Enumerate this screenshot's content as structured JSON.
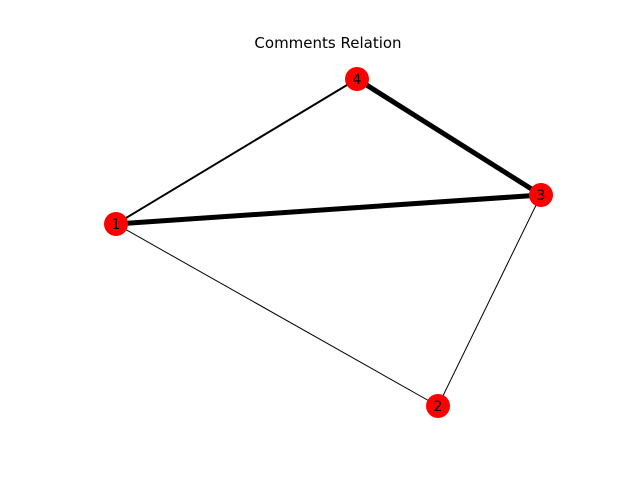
{
  "figure": {
    "title": "Comments Relation"
  },
  "graph": {
    "node_color": "#ff0000",
    "edge_color": "#000000",
    "nodes": [
      {
        "id": "1",
        "label": "1"
      },
      {
        "id": "2",
        "label": "2"
      },
      {
        "id": "3",
        "label": "3"
      },
      {
        "id": "4",
        "label": "4"
      }
    ],
    "edges": [
      {
        "source": "1",
        "target": "4",
        "weight": 2
      },
      {
        "source": "1",
        "target": "3",
        "weight": 5
      },
      {
        "source": "1",
        "target": "2",
        "weight": 1
      },
      {
        "source": "4",
        "target": "3",
        "weight": 5
      },
      {
        "source": "3",
        "target": "2",
        "weight": 1
      }
    ]
  }
}
